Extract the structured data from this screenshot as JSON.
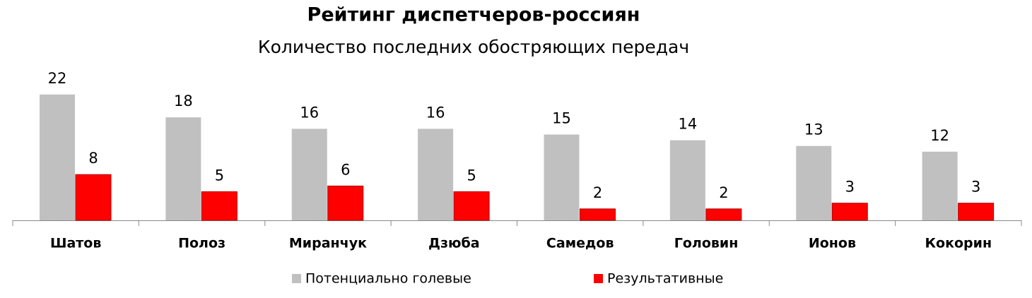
{
  "chart_data": {
    "type": "bar",
    "title": "Рейтинг диспетчеров-россиян",
    "subtitle": "Количество последних обостряющих передач",
    "categories": [
      "Шатов",
      "Полоз",
      "Миранчук",
      "Дзюба",
      "Самедов",
      "Головин",
      "Ионов",
      "Кокорин"
    ],
    "series": [
      {
        "name": "Потенциально голевые",
        "color": "#c0c0c0",
        "values": [
          22,
          18,
          16,
          16,
          15,
          14,
          13,
          12
        ]
      },
      {
        "name": "Результативные",
        "color": "#ff0000",
        "values": [
          8,
          5,
          6,
          5,
          2,
          2,
          3,
          3
        ]
      }
    ],
    "legend": "bottom"
  }
}
